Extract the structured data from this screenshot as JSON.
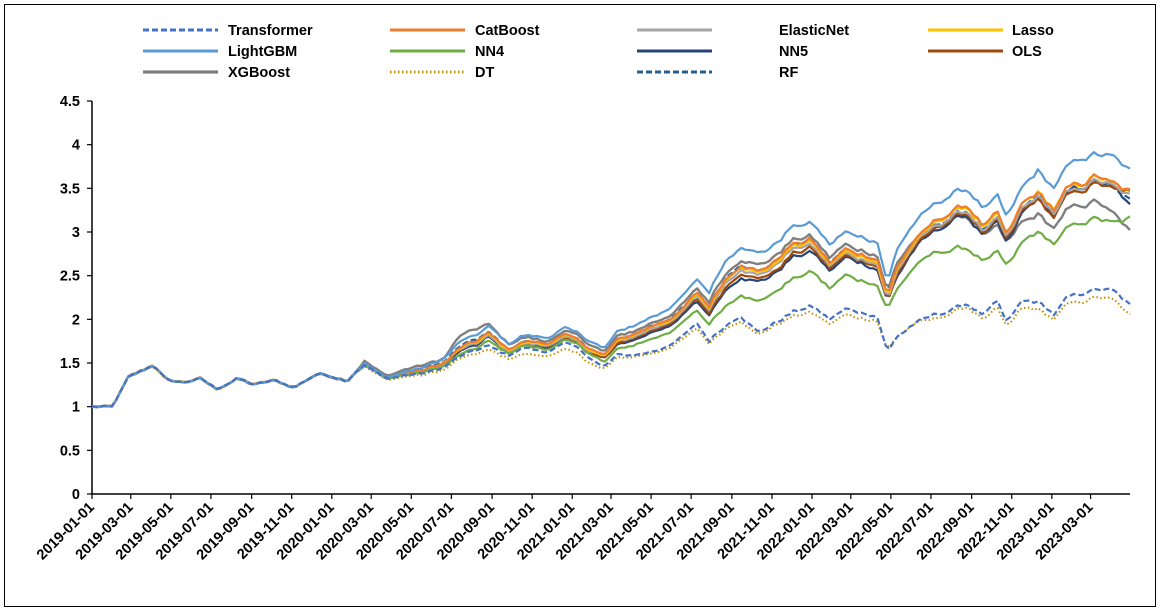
{
  "chart_data": {
    "type": "line",
    "title": "",
    "xlabel": "",
    "ylabel": "",
    "ylim": [
      0,
      4.5
    ],
    "yticks": [
      "0",
      "0.5",
      "1",
      "1.5",
      "2",
      "2.5",
      "3",
      "3.5",
      "4",
      "4.5"
    ],
    "x_start": "2019-01-01",
    "x_end": "2023-04-30",
    "xticks": [
      "2019-01-01",
      "2019-03-01",
      "2019-05-01",
      "2019-07-01",
      "2019-09-01",
      "2019-11-01",
      "2020-01-01",
      "2020-03-01",
      "2020-05-01",
      "2020-07-01",
      "2020-09-01",
      "2020-11-01",
      "2021-01-01",
      "2021-03-01",
      "2021-05-01",
      "2021-07-01",
      "2021-09-01",
      "2021-11-01",
      "2022-01-01",
      "2022-03-01",
      "2022-05-01",
      "2022-07-01",
      "2022-09-01",
      "2022-11-01",
      "2023-01-01",
      "2023-03-01"
    ],
    "legend_position": "top",
    "grid": false,
    "base_dates": [
      "2019-01-01",
      "2019-02-01",
      "2019-02-25",
      "2019-04-05",
      "2019-04-25",
      "2019-05-20",
      "2019-06-15",
      "2019-07-10",
      "2019-08-10",
      "2019-09-05",
      "2019-10-05",
      "2019-11-05",
      "2019-12-10",
      "2019-12-30",
      "2020-01-25",
      "2020-02-03",
      "2020-02-20",
      "2020-03-23",
      "2020-04-20",
      "2020-05-20",
      "2020-06-20",
      "2020-07-15",
      "2020-08-10",
      "2020-08-25",
      "2020-09-25",
      "2020-10-20",
      "2020-11-20",
      "2020-12-20",
      "2021-01-10",
      "2021-01-25",
      "2021-02-10",
      "2021-02-18",
      "2021-03-10",
      "2021-04-10",
      "2021-05-10",
      "2021-06-10",
      "2021-07-10",
      "2021-07-28",
      "2021-08-20",
      "2021-09-15",
      "2021-10-10",
      "2021-11-05",
      "2021-12-01",
      "2021-12-31",
      "2022-01-28",
      "2022-02-20",
      "2022-03-15",
      "2022-04-10",
      "2022-04-26",
      "2022-05-10",
      "2022-06-05",
      "2022-07-05",
      "2022-08-05",
      "2022-08-25",
      "2022-09-20",
      "2022-10-10",
      "2022-10-25",
      "2022-11-15",
      "2022-12-10",
      "2023-01-05",
      "2023-01-25",
      "2023-02-15",
      "2023-03-10",
      "2023-04-05",
      "2023-04-30"
    ],
    "series": [
      {
        "name": "Transformer",
        "color": "#4472C4",
        "dash": "dash",
        "width": 2.2,
        "values": [
          1,
          1,
          1.33,
          1.48,
          1.3,
          1.28,
          1.32,
          1.2,
          1.32,
          1.25,
          1.3,
          1.22,
          1.38,
          1.35,
          1.3,
          1.38,
          1.48,
          1.32,
          1.36,
          1.38,
          1.45,
          1.58,
          1.65,
          1.7,
          1.58,
          1.68,
          1.62,
          1.72,
          1.66,
          1.58,
          1.48,
          1.45,
          1.58,
          1.6,
          1.65,
          1.75,
          1.95,
          1.75,
          1.92,
          2.05,
          1.85,
          1.95,
          2.08,
          2.15,
          2,
          2.12,
          2.08,
          2.05,
          1.62,
          1.8,
          1.95,
          2.05,
          2.12,
          2.18,
          2.05,
          2.2,
          1.95,
          2.2,
          2.2,
          2.05,
          2.25,
          2.3,
          2.35,
          2.32,
          2.15
        ]
      },
      {
        "name": "CatBoost",
        "color": "#ED7D31",
        "dash": "solid",
        "width": 2.2,
        "values": [
          1,
          1,
          1.33,
          1.48,
          1.3,
          1.28,
          1.32,
          1.2,
          1.32,
          1.25,
          1.3,
          1.22,
          1.38,
          1.35,
          1.3,
          1.38,
          1.49,
          1.32,
          1.38,
          1.42,
          1.5,
          1.68,
          1.75,
          1.85,
          1.65,
          1.75,
          1.72,
          1.82,
          1.76,
          1.68,
          1.62,
          1.58,
          1.75,
          1.85,
          1.95,
          2.05,
          2.3,
          2.15,
          2.45,
          2.65,
          2.55,
          2.65,
          2.85,
          2.92,
          2.65,
          2.8,
          2.75,
          2.7,
          2.25,
          2.6,
          2.9,
          3.1,
          3.25,
          3.3,
          3.05,
          3.2,
          2.95,
          3.3,
          3.45,
          3.25,
          3.5,
          3.55,
          3.65,
          3.55,
          3.45
        ]
      },
      {
        "name": "ElasticNet",
        "color": "#A5A5A5",
        "dash": "solid",
        "width": 2.2,
        "values": [
          1,
          1,
          1.33,
          1.48,
          1.3,
          1.28,
          1.32,
          1.2,
          1.32,
          1.25,
          1.3,
          1.22,
          1.38,
          1.35,
          1.3,
          1.38,
          1.48,
          1.32,
          1.37,
          1.41,
          1.49,
          1.66,
          1.73,
          1.82,
          1.63,
          1.73,
          1.7,
          1.79,
          1.73,
          1.65,
          1.6,
          1.56,
          1.73,
          1.82,
          1.92,
          2.02,
          2.26,
          2.11,
          2.4,
          2.6,
          2.5,
          2.6,
          2.8,
          2.86,
          2.6,
          2.75,
          2.7,
          2.65,
          2.22,
          2.55,
          2.85,
          3.05,
          3.2,
          3.25,
          3,
          3.15,
          2.9,
          3.25,
          3.4,
          3.2,
          3.45,
          3.5,
          3.6,
          3.5,
          3.4
        ]
      },
      {
        "name": "Lasso",
        "color": "#FFC000",
        "dash": "solid",
        "width": 2.2,
        "values": [
          1,
          1,
          1.33,
          1.48,
          1.3,
          1.28,
          1.32,
          1.2,
          1.32,
          1.25,
          1.3,
          1.22,
          1.38,
          1.35,
          1.3,
          1.38,
          1.49,
          1.32,
          1.38,
          1.42,
          1.5,
          1.67,
          1.74,
          1.84,
          1.64,
          1.74,
          1.71,
          1.81,
          1.75,
          1.67,
          1.61,
          1.57,
          1.74,
          1.84,
          1.94,
          2.04,
          2.28,
          2.13,
          2.43,
          2.63,
          2.53,
          2.63,
          2.83,
          2.9,
          2.63,
          2.78,
          2.73,
          2.68,
          2.24,
          2.58,
          2.88,
          3.08,
          3.24,
          3.29,
          3.04,
          3.19,
          2.94,
          3.29,
          3.45,
          3.25,
          3.5,
          3.55,
          3.65,
          3.55,
          3.45
        ]
      },
      {
        "name": "LightGBM",
        "color": "#5B9BD5",
        "dash": "solid",
        "width": 2.2,
        "values": [
          1,
          1,
          1.33,
          1.48,
          1.3,
          1.28,
          1.32,
          1.2,
          1.32,
          1.25,
          1.3,
          1.22,
          1.38,
          1.35,
          1.3,
          1.38,
          1.5,
          1.33,
          1.4,
          1.45,
          1.55,
          1.75,
          1.82,
          1.92,
          1.72,
          1.82,
          1.78,
          1.9,
          1.83,
          1.76,
          1.7,
          1.65,
          1.85,
          1.95,
          2.05,
          2.2,
          2.45,
          2.3,
          2.65,
          2.85,
          2.75,
          2.85,
          3.05,
          3.1,
          2.85,
          3,
          2.95,
          2.9,
          2.4,
          2.8,
          3.1,
          3.3,
          3.45,
          3.5,
          3.25,
          3.4,
          3.15,
          3.5,
          3.7,
          3.5,
          3.75,
          3.85,
          3.9,
          3.85,
          3.7
        ]
      },
      {
        "name": "NN4",
        "color": "#70AD47",
        "dash": "solid",
        "width": 2.2,
        "values": [
          1,
          1,
          1.33,
          1.48,
          1.3,
          1.28,
          1.32,
          1.2,
          1.32,
          1.25,
          1.3,
          1.22,
          1.38,
          1.35,
          1.3,
          1.38,
          1.48,
          1.32,
          1.36,
          1.39,
          1.46,
          1.6,
          1.67,
          1.75,
          1.6,
          1.7,
          1.65,
          1.75,
          1.7,
          1.62,
          1.55,
          1.5,
          1.65,
          1.72,
          1.8,
          1.9,
          2.1,
          1.95,
          2.15,
          2.3,
          2.2,
          2.3,
          2.45,
          2.55,
          2.35,
          2.5,
          2.45,
          2.4,
          2.1,
          2.35,
          2.6,
          2.75,
          2.8,
          2.82,
          2.65,
          2.75,
          2.6,
          2.85,
          3,
          2.85,
          3.05,
          3.1,
          3.15,
          3.1,
          3.15
        ]
      },
      {
        "name": "NN5",
        "color": "#264478",
        "dash": "solid",
        "width": 2.2,
        "values": [
          1,
          1,
          1.33,
          1.48,
          1.3,
          1.28,
          1.32,
          1.2,
          1.32,
          1.25,
          1.3,
          1.22,
          1.38,
          1.35,
          1.3,
          1.38,
          1.48,
          1.32,
          1.37,
          1.4,
          1.48,
          1.64,
          1.71,
          1.8,
          1.62,
          1.72,
          1.68,
          1.78,
          1.72,
          1.64,
          1.58,
          1.54,
          1.7,
          1.78,
          1.88,
          1.98,
          2.2,
          2.05,
          2.32,
          2.5,
          2.42,
          2.52,
          2.7,
          2.78,
          2.55,
          2.7,
          2.65,
          2.6,
          2.2,
          2.5,
          2.8,
          3,
          3.15,
          3.2,
          2.95,
          3.1,
          2.85,
          3.2,
          3.4,
          3.2,
          3.45,
          3.5,
          3.6,
          3.5,
          3.3
        ]
      },
      {
        "name": "OLS",
        "color": "#9E480E",
        "dash": "solid",
        "width": 2.2,
        "values": [
          1,
          1,
          1.33,
          1.48,
          1.3,
          1.28,
          1.32,
          1.2,
          1.32,
          1.25,
          1.3,
          1.22,
          1.38,
          1.35,
          1.3,
          1.38,
          1.48,
          1.32,
          1.37,
          1.4,
          1.48,
          1.65,
          1.72,
          1.81,
          1.62,
          1.72,
          1.69,
          1.78,
          1.72,
          1.64,
          1.59,
          1.55,
          1.71,
          1.8,
          1.9,
          2,
          2.22,
          2.07,
          2.35,
          2.55,
          2.45,
          2.55,
          2.75,
          2.82,
          2.58,
          2.72,
          2.68,
          2.63,
          2.2,
          2.52,
          2.82,
          3.02,
          3.18,
          3.22,
          2.98,
          3.12,
          2.88,
          3.22,
          3.38,
          3.18,
          3.42,
          3.47,
          3.57,
          3.48,
          3.45
        ]
      },
      {
        "name": "XGBoost",
        "color": "#7F7F7F",
        "dash": "solid",
        "width": 2.4,
        "values": [
          1,
          1,
          1.33,
          1.48,
          1.3,
          1.28,
          1.32,
          1.2,
          1.32,
          1.25,
          1.3,
          1.22,
          1.38,
          1.35,
          1.3,
          1.38,
          1.52,
          1.35,
          1.42,
          1.48,
          1.55,
          1.82,
          1.9,
          1.95,
          1.72,
          1.8,
          1.75,
          1.85,
          1.8,
          1.72,
          1.66,
          1.62,
          1.8,
          1.88,
          1.98,
          2.1,
          2.35,
          2.2,
          2.5,
          2.7,
          2.62,
          2.72,
          2.9,
          2.95,
          2.7,
          2.85,
          2.8,
          2.75,
          2.3,
          2.65,
          2.9,
          3.05,
          3.15,
          3.18,
          2.95,
          3.05,
          2.85,
          3.1,
          3.2,
          3.05,
          3.25,
          3.3,
          3.35,
          3.2,
          3
        ]
      },
      {
        "name": "DT",
        "color": "#BF8F00",
        "dash": "dot",
        "width": 2,
        "values": [
          1,
          1,
          1.33,
          1.48,
          1.3,
          1.28,
          1.32,
          1.2,
          1.32,
          1.25,
          1.3,
          1.22,
          1.38,
          1.35,
          1.3,
          1.38,
          1.46,
          1.3,
          1.34,
          1.36,
          1.42,
          1.55,
          1.6,
          1.65,
          1.55,
          1.6,
          1.58,
          1.65,
          1.6,
          1.52,
          1.45,
          1.42,
          1.55,
          1.58,
          1.62,
          1.72,
          1.9,
          1.72,
          1.88,
          2,
          1.82,
          1.92,
          2.02,
          2.08,
          1.95,
          2.05,
          2.02,
          2,
          1.65,
          1.8,
          1.95,
          2,
          2.08,
          2.15,
          2,
          2.12,
          1.9,
          2.12,
          2.12,
          2,
          2.18,
          2.2,
          2.25,
          2.22,
          2.05
        ]
      },
      {
        "name": "RF",
        "color": "#255E91",
        "dash": "dash",
        "width": 2.2,
        "values": [
          1,
          1,
          1.33,
          1.48,
          1.3,
          1.28,
          1.32,
          1.2,
          1.32,
          1.25,
          1.3,
          1.22,
          1.38,
          1.35,
          1.3,
          1.38,
          1.49,
          1.33,
          1.38,
          1.43,
          1.51,
          1.7,
          1.77,
          1.86,
          1.66,
          1.76,
          1.72,
          1.82,
          1.76,
          1.68,
          1.62,
          1.58,
          1.76,
          1.85,
          1.95,
          2.06,
          2.3,
          2.15,
          2.45,
          2.65,
          2.55,
          2.65,
          2.85,
          2.9,
          2.65,
          2.8,
          2.75,
          2.7,
          2.3,
          2.6,
          2.88,
          3.05,
          3.2,
          3.24,
          3,
          3.14,
          2.9,
          3.24,
          3.42,
          3.22,
          3.46,
          3.5,
          3.58,
          3.48,
          3.35
        ]
      }
    ]
  }
}
